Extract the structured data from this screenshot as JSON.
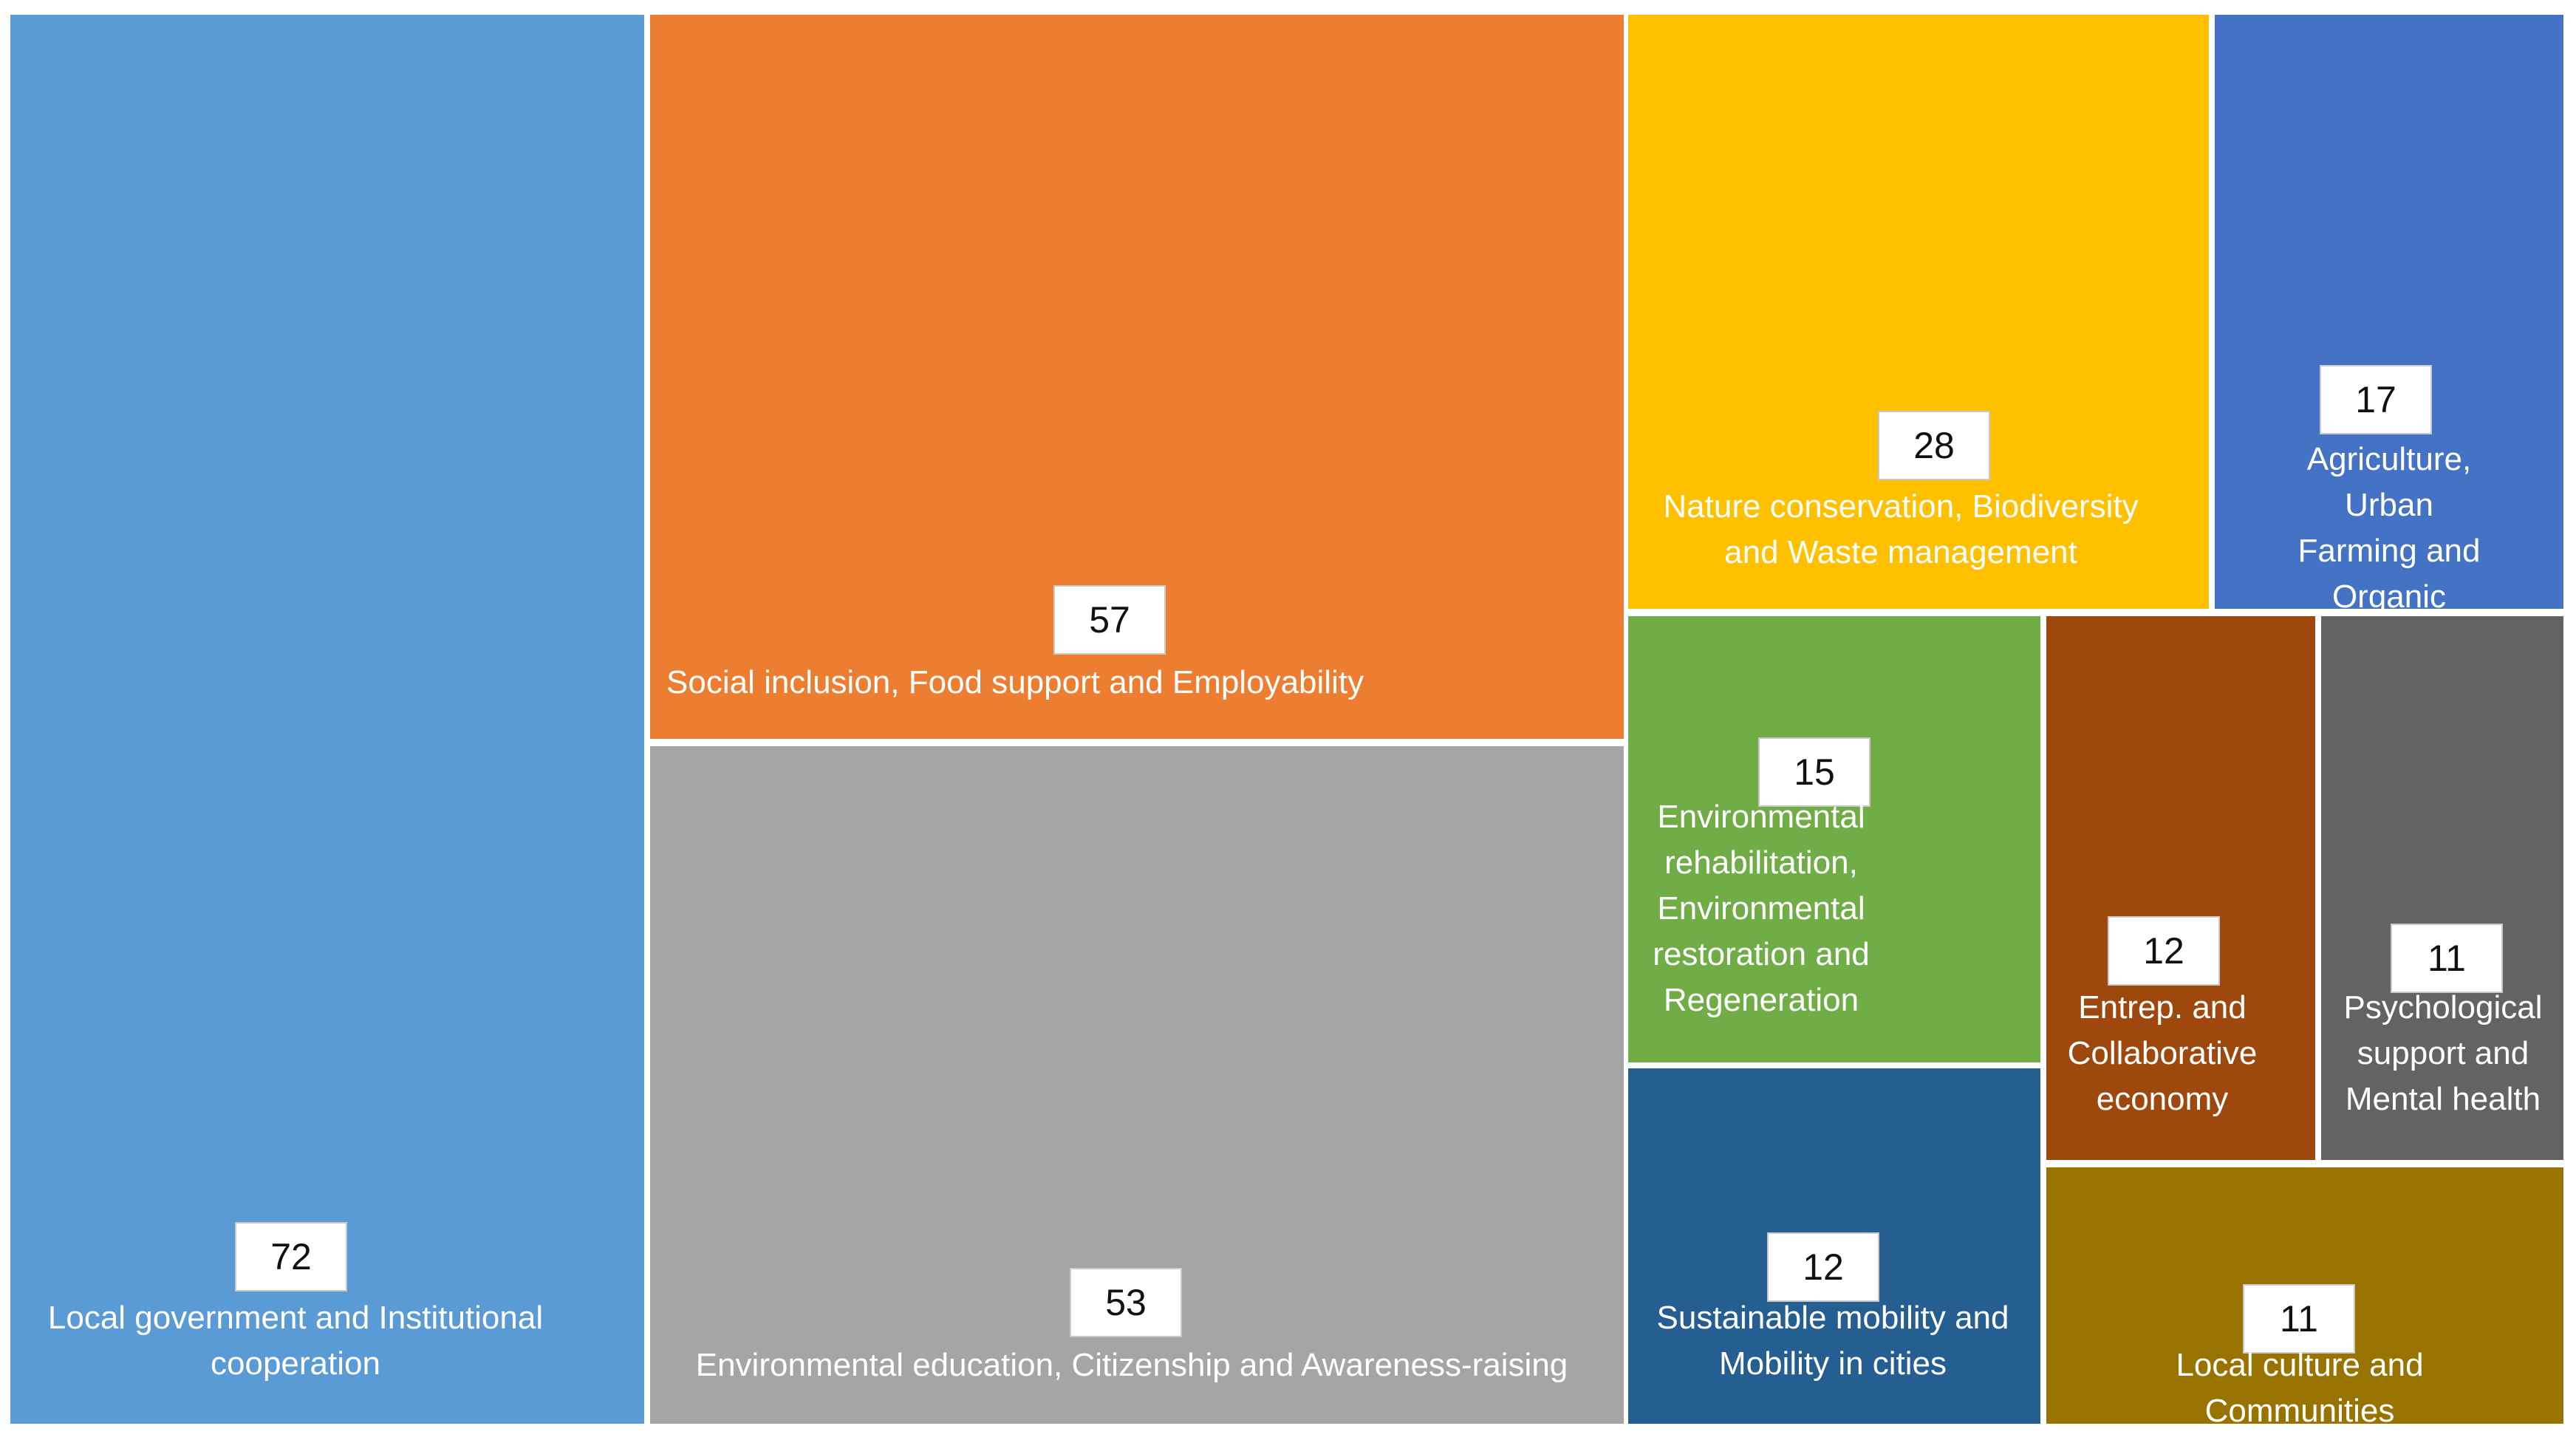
{
  "chart_data": {
    "type": "treemap",
    "title": "",
    "items": [
      {
        "label": "Local government and Institutional cooperation",
        "value": 72,
        "color": "#5B9BD5"
      },
      {
        "label": "Social inclusion, Food support and Employability",
        "value": 57,
        "color": "#ED7D31"
      },
      {
        "label": "Environmental education, Citizenship and Awareness-raising",
        "value": 53,
        "color": "#A5A5A5"
      },
      {
        "label": "Nature conservation, Biodiversity and Waste management",
        "value": 28,
        "color": "#FFC000"
      },
      {
        "label": "Agriculture, Urban Farming and Organic Horticulture",
        "value": 17,
        "color": "#4472C4"
      },
      {
        "label": "Environmental rehabilitation, Environmental restoration and Regeneration",
        "value": 15,
        "color": "#70AD47"
      },
      {
        "label": "Entrep. and Collaborative economy",
        "value": 12,
        "color": "#9E480E"
      },
      {
        "label": "Psychological support and Mental health",
        "value": 11,
        "color": "#636363"
      },
      {
        "label": "Sustainable mobility and Mobility in cities",
        "value": 12,
        "color": "#255E91"
      },
      {
        "label": "Local culture and Communities",
        "value": 11,
        "color": "#997300"
      }
    ]
  }
}
